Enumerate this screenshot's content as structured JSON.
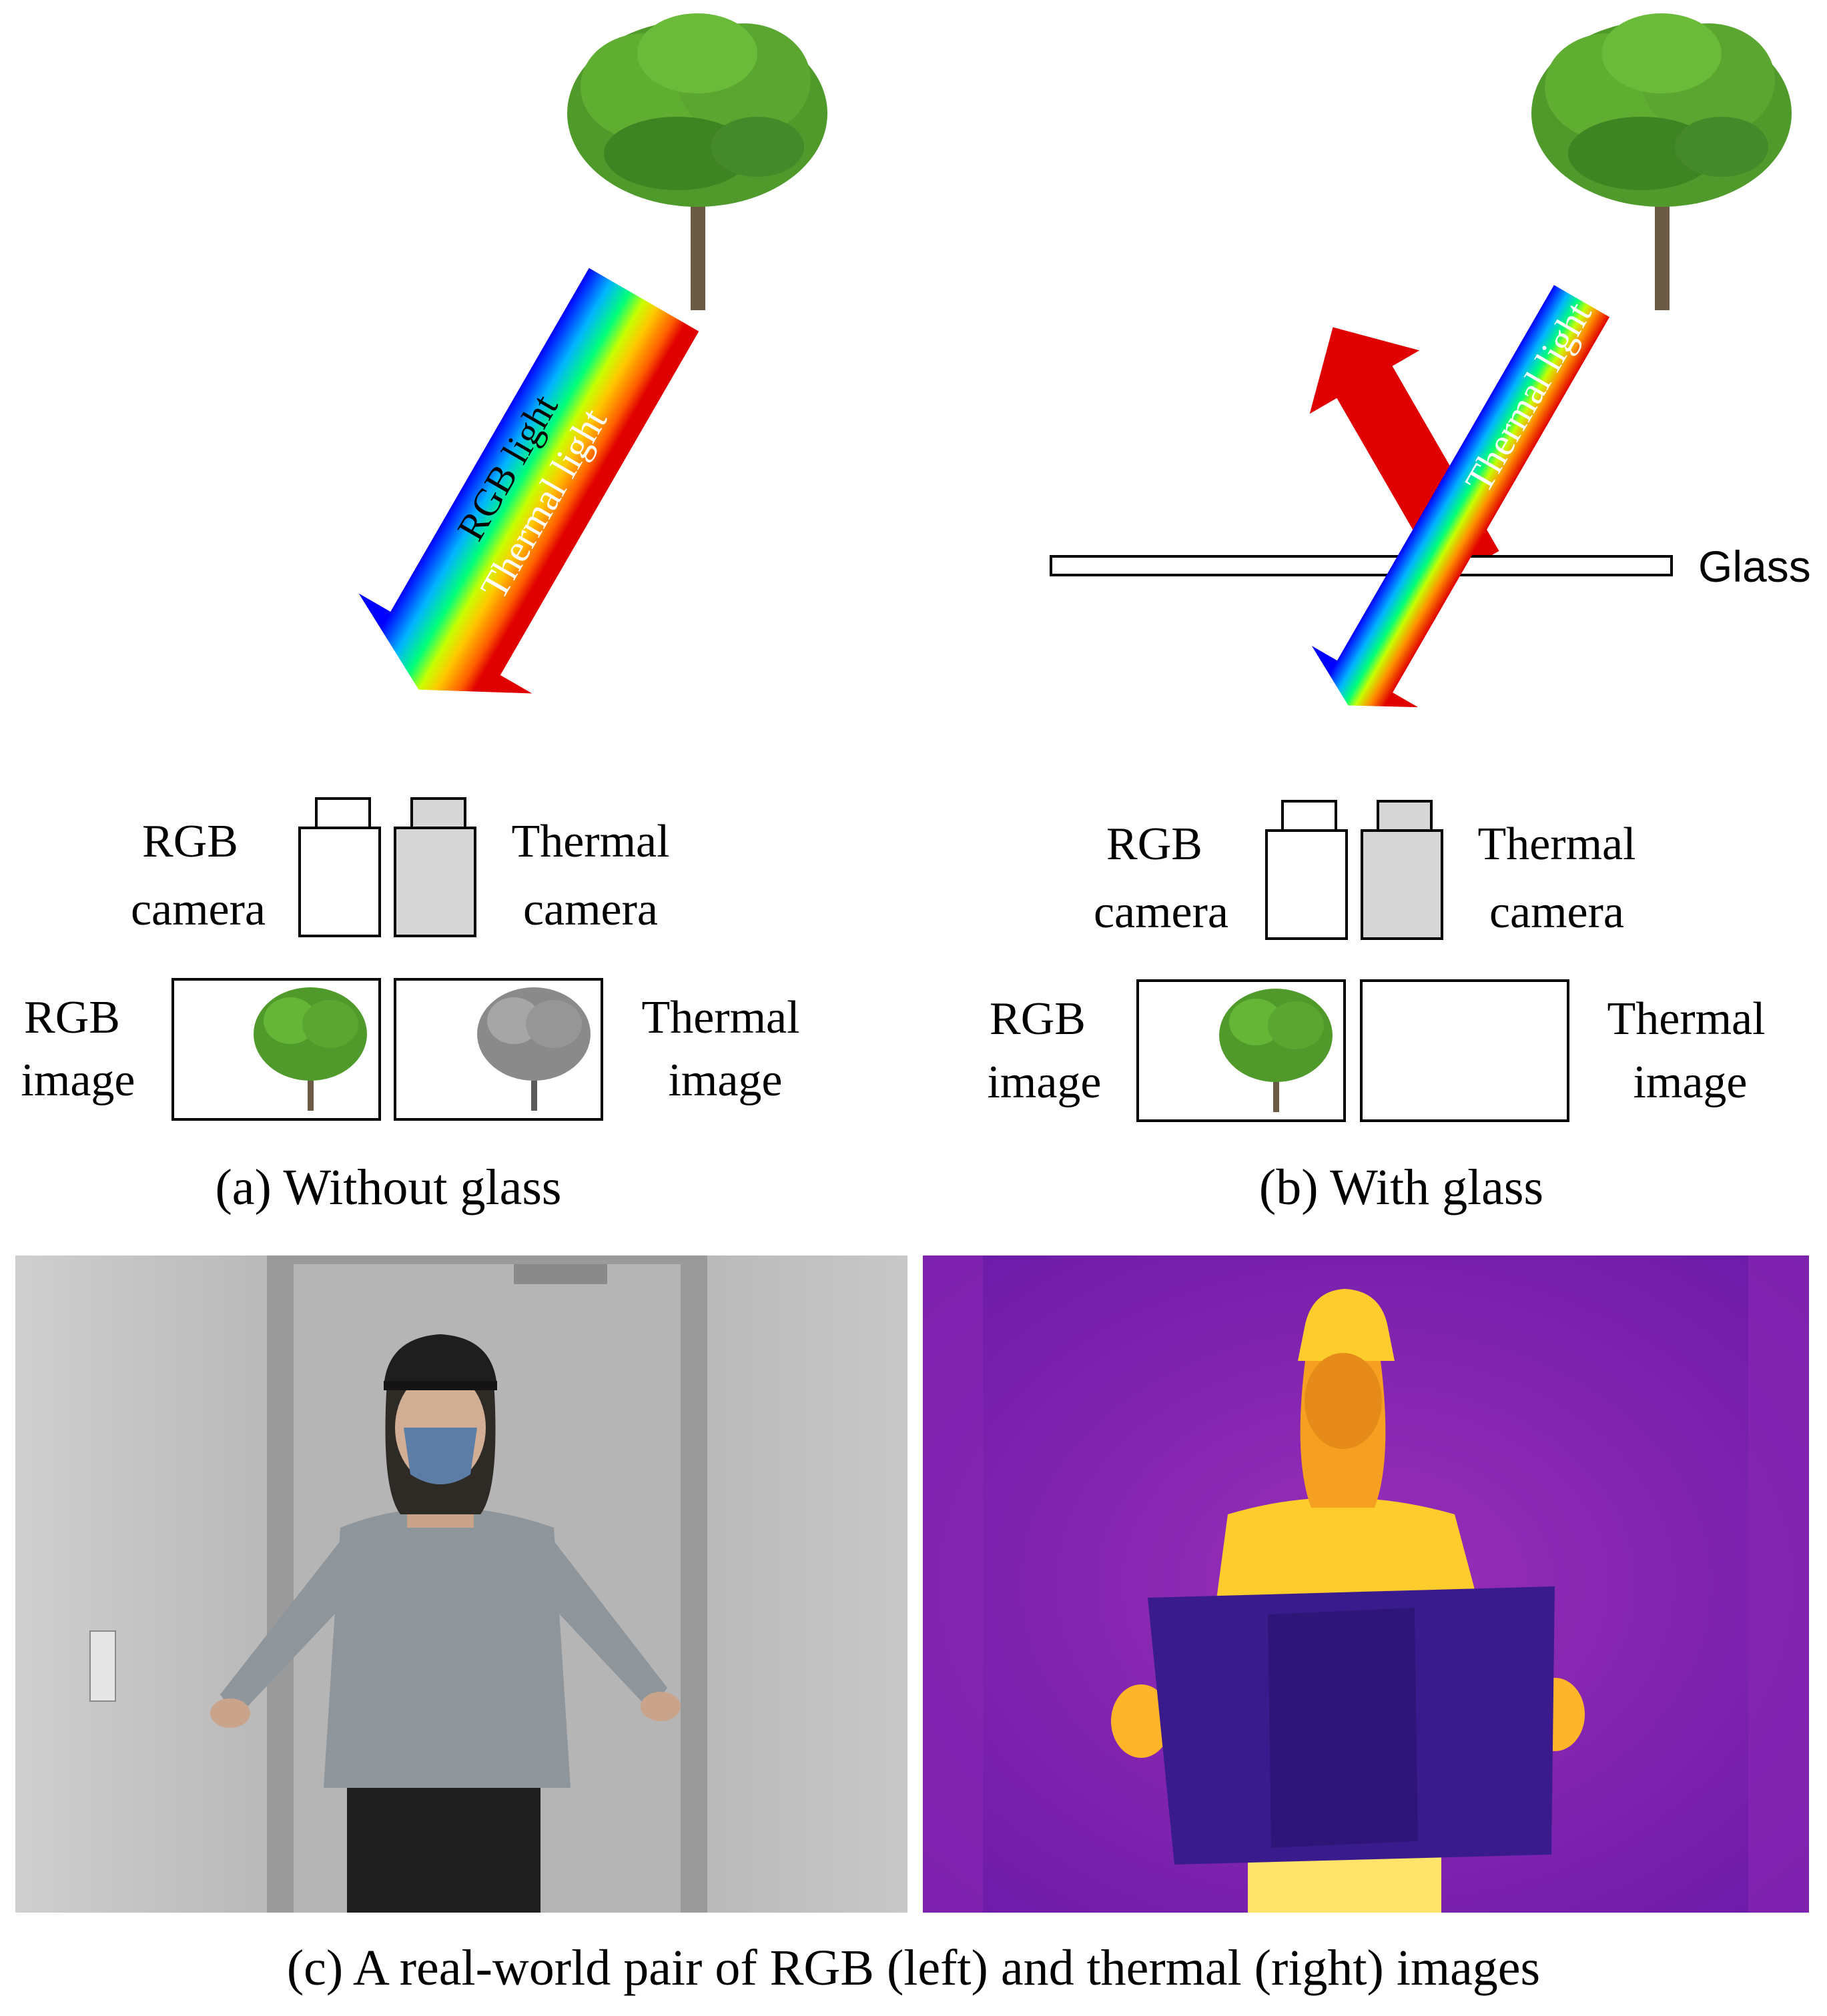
{
  "panel_a": {
    "ray_rgb_label": "RGB light",
    "ray_thermal_label": "Thermal light",
    "rgb_camera": [
      "RGB",
      "camera"
    ],
    "thermal_camera": [
      "Thermal",
      "camera"
    ],
    "rgb_image": [
      "RGB",
      "image"
    ],
    "thermal_image": [
      "Thermal",
      "image"
    ],
    "caption": "(a) Without glass"
  },
  "panel_b": {
    "ray_thermal_label": "Thermal light",
    "glass_label": "Glass",
    "rgb_camera": [
      "RGB",
      "camera"
    ],
    "thermal_camera": [
      "Thermal",
      "camera"
    ],
    "rgb_image": [
      "RGB",
      "image"
    ],
    "thermal_image": [
      "Thermal",
      "image"
    ],
    "caption": "(b) With glass"
  },
  "panel_c": {
    "caption": "(c) A real-world pair of RGB (left) and thermal (right) images"
  },
  "colors": {
    "thermal_arrow": "#e00000",
    "rgb_gradient": [
      "#0000ff",
      "#00b4ff",
      "#00ff7a",
      "#c8ff00",
      "#ffc800",
      "#ff6000",
      "#e00000"
    ],
    "thermal_camera_fill": "#d6d6d6",
    "tree_foliage": "#4f9a2a",
    "thermal_background": "#7a1fb0",
    "thermal_person": "#ffd23a",
    "thermal_glass": "#3a1b8e"
  },
  "icons": [
    "tree-icon",
    "rgb-camera-icon",
    "thermal-camera-icon"
  ]
}
